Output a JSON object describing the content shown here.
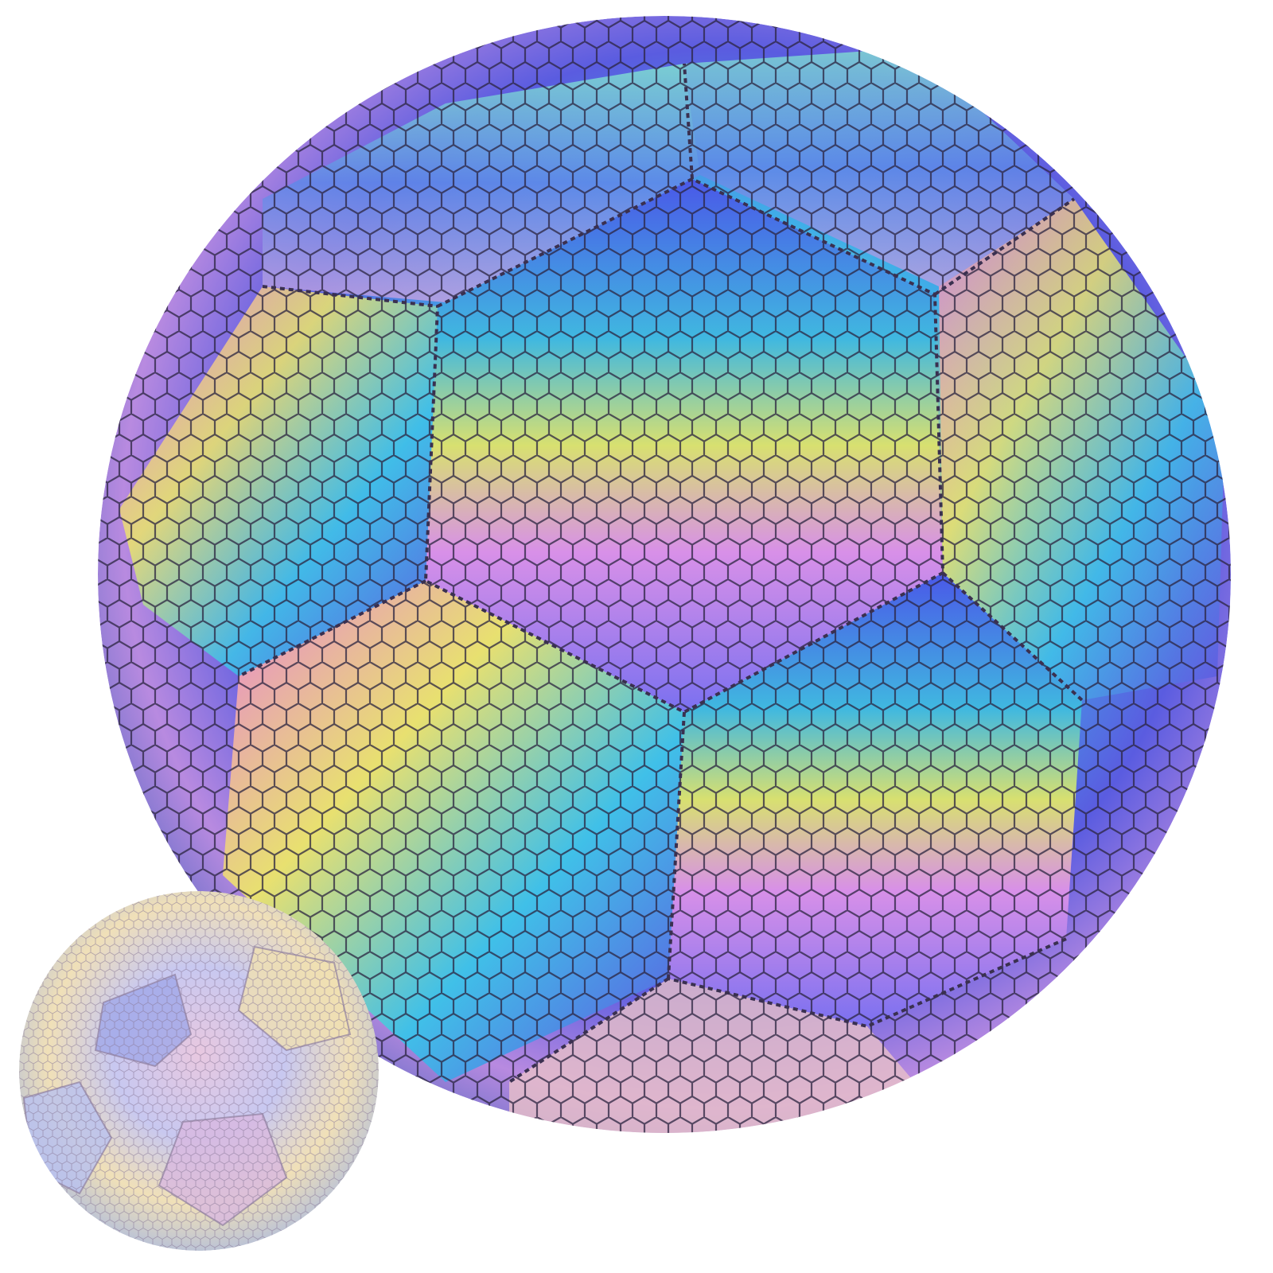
{
  "scene": {
    "background": "#ffffff",
    "subjects": [
      {
        "name": "large-holographic-soccer-ball",
        "colors": [
          "#5a5ce0",
          "#3fa6e8",
          "#e0d860",
          "#c78ae8",
          "#8fd9c8",
          "#e8b0c8"
        ]
      },
      {
        "name": "small-holographic-soccer-ball",
        "colors": [
          "#b8c8f0",
          "#e8c8d8",
          "#f0e8b8",
          "#a8b8e8"
        ]
      }
    ],
    "icons": [
      "hexagon-texture"
    ]
  }
}
